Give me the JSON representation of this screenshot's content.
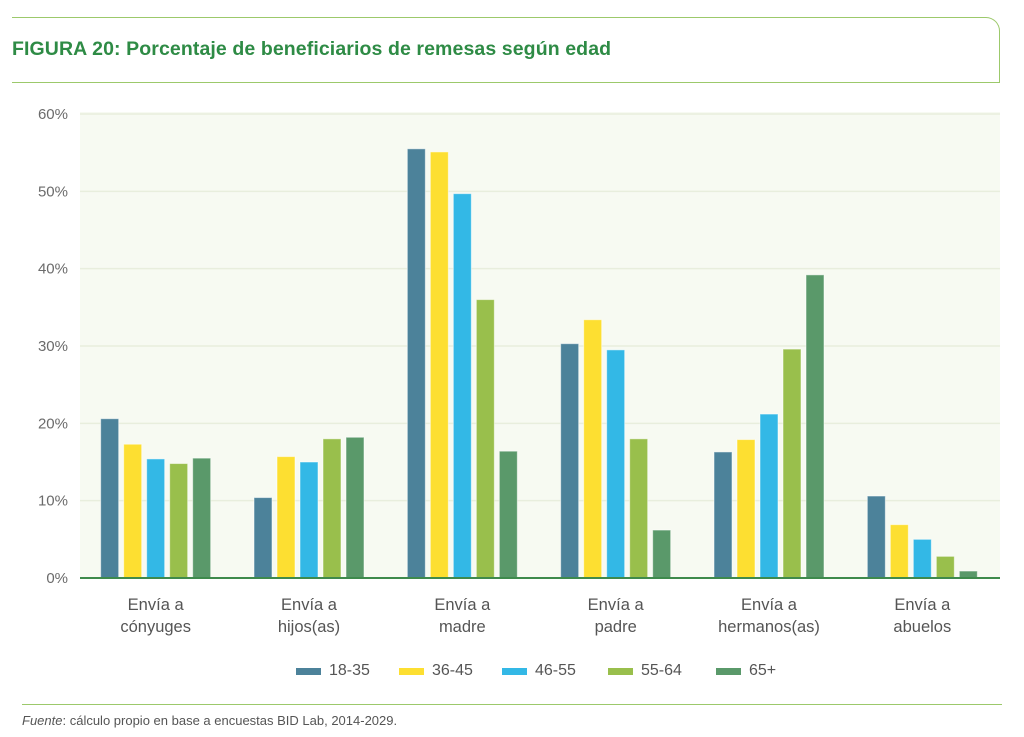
{
  "header": {
    "title": "FIGURA 20: Porcentaje de beneficiarios de remesas según edad"
  },
  "footer": {
    "source_label": "Fuente",
    "source_text": ": cálculo propio en base a encuestas BID Lab, 2014-2029."
  },
  "colors": {
    "title": "#2e8b45",
    "frame": "#9cc96b",
    "plot_background": "#f7faf2",
    "gridline": "#e8eedd",
    "baseline": "#3e8a4c"
  },
  "chart_data": {
    "type": "bar",
    "title": "FIGURA 20: Porcentaje de beneficiarios de remesas según edad",
    "xlabel": "",
    "ylabel": "",
    "ylim": [
      0,
      60
    ],
    "yticks": [
      0,
      10,
      20,
      30,
      40,
      50,
      60
    ],
    "ytick_labels": [
      "0%",
      "10%",
      "20%",
      "30%",
      "40%",
      "50%",
      "60%"
    ],
    "grid": true,
    "legend_position": "bottom-center",
    "categories": [
      [
        "Envía a",
        "cónyuges"
      ],
      [
        "Envía a",
        "hijos(as)"
      ],
      [
        "Envía a",
        "madre"
      ],
      [
        "Envía a",
        "padre"
      ],
      [
        "Envía a",
        "hermanos(as)"
      ],
      [
        "Envía a",
        "abuelos"
      ]
    ],
    "series": [
      {
        "name": "18-35",
        "color": "#4c829a",
        "values": [
          20.6,
          10.4,
          55.5,
          30.3,
          16.3,
          10.6
        ]
      },
      {
        "name": "36-45",
        "color": "#fddf31",
        "values": [
          17.3,
          15.7,
          55.1,
          33.4,
          17.9,
          6.9
        ]
      },
      {
        "name": "46-55",
        "color": "#33b8e6",
        "values": [
          15.4,
          15.0,
          49.7,
          29.5,
          21.2,
          5.0
        ]
      },
      {
        "name": "55-64",
        "color": "#99bf4c",
        "values": [
          14.8,
          18.0,
          36.0,
          18.0,
          29.6,
          2.8
        ]
      },
      {
        "name": "65+",
        "color": "#5a996a",
        "values": [
          15.5,
          18.2,
          16.4,
          6.2,
          39.2,
          0.9
        ]
      }
    ]
  }
}
